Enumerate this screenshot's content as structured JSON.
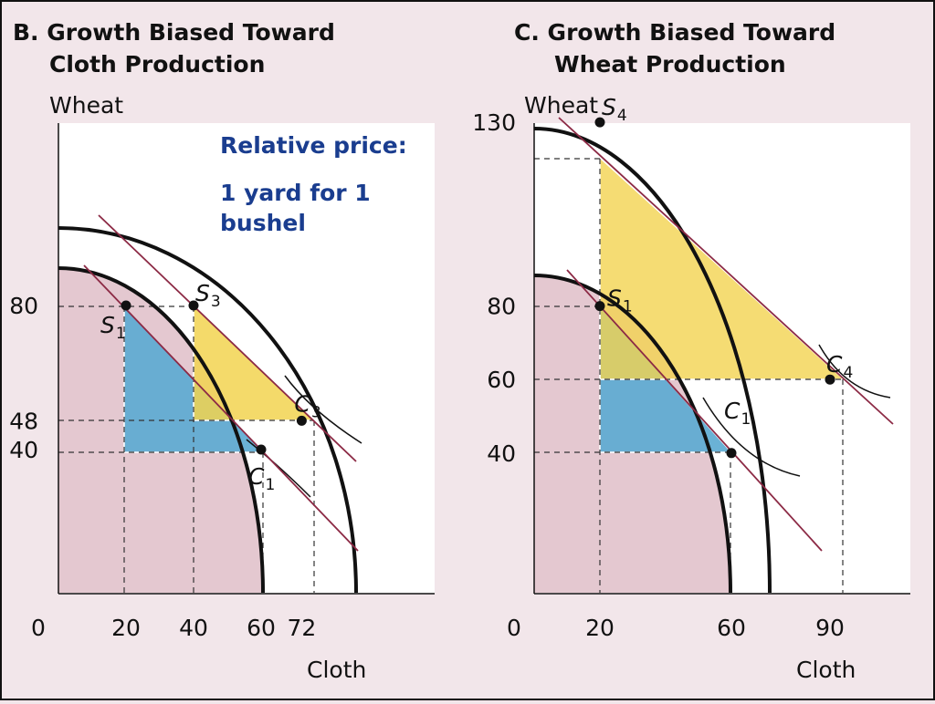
{
  "colors": {
    "background": "#f2e6ea",
    "plot_area": "#ffffff",
    "ppf_region": "#e4c8d0",
    "blue_triangle": "#5aaad2",
    "yellow_triangle": "#f2d350",
    "price_line": "#8c2a45",
    "note_text": "#1a3d8f"
  },
  "panel_b": {
    "title_line1": "B.  Growth Biased Toward",
    "title_line2": "Cloth Production",
    "price_note_line1": "Relative price:",
    "price_note_line2": "1 yard for 1",
    "price_note_line3": "bushel"
  },
  "panel_c": {
    "title_line1": "C.  Growth Biased Toward",
    "title_line2": "Wheat Production"
  },
  "chart_data": [
    {
      "type": "line",
      "panel": "B",
      "title": "B. Growth Biased Toward Cloth Production",
      "xlabel": "Cloth",
      "ylabel": "Wheat",
      "x_ticks": [
        "0",
        "20",
        "40",
        "60",
        "72"
      ],
      "y_ticks": [
        "80",
        "48",
        "40"
      ],
      "points": [
        {
          "name": "S",
          "sub": "1",
          "x": 20,
          "y": 80
        },
        {
          "name": "C",
          "sub": "1",
          "x": 60,
          "y": 40
        },
        {
          "name": "S",
          "sub": "3",
          "x": 40,
          "y": 80
        },
        {
          "name": "C",
          "sub": "3",
          "x": 72,
          "y": 48
        }
      ],
      "relative_price": "1 yard for 1 bushel"
    },
    {
      "type": "line",
      "panel": "C",
      "title": "C. Growth Biased Toward Wheat Production",
      "xlabel": "Cloth",
      "ylabel": "Wheat",
      "x_ticks": [
        "0",
        "20",
        "60",
        "90"
      ],
      "y_ticks": [
        "130",
        "80",
        "60",
        "40"
      ],
      "points": [
        {
          "name": "S",
          "sub": "1",
          "x": 20,
          "y": 80
        },
        {
          "name": "C",
          "sub": "1",
          "x": 60,
          "y": 40
        },
        {
          "name": "S",
          "sub": "4",
          "x": 20,
          "y": 130
        },
        {
          "name": "C",
          "sub": "4",
          "x": 90,
          "y": 60
        }
      ]
    }
  ]
}
